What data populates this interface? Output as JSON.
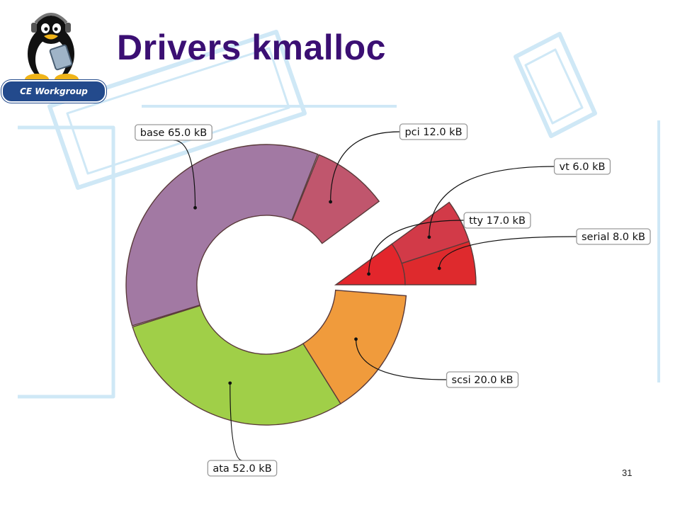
{
  "slide": {
    "title": "Drivers kmalloc",
    "logo_text": "CE Workgroup",
    "page_number": "31"
  },
  "chart_data": {
    "type": "sunburst",
    "title": "",
    "unit": "kB",
    "start_angle_deg": 0,
    "direction": "counterclockwise",
    "rings": [
      {
        "level": 1,
        "slices": [
          {
            "name": "pci",
            "value": 12.0,
            "label": "pci 12.0 kB",
            "color": "#c0566d",
            "start_deg": 36.5,
            "end_deg": 68.0
          },
          {
            "name": "base",
            "value": 65.0,
            "label": "base 65.0 kB",
            "color": "#a279a3",
            "start_deg": 68.5,
            "end_deg": 197.0
          },
          {
            "name": "ata",
            "value": 52.0,
            "label": "ata 52.0 kB",
            "color": "#a0cf48",
            "start_deg": 197.5,
            "end_deg": 302.0
          },
          {
            "name": "scsi",
            "value": 20.0,
            "label": "scsi 20.0 kB",
            "color": "#f09b3c",
            "start_deg": 302.0,
            "end_deg": 355.5
          }
        ]
      },
      {
        "level": 1,
        "exploded": true,
        "slices": [
          {
            "name": "tty",
            "value": 17.0,
            "label": "tty 17.0 kB",
            "color": "#e3262c",
            "start_deg": 0,
            "end_deg": 36
          }
        ]
      },
      {
        "level": 2,
        "exploded": true,
        "parent": "tty",
        "slices": [
          {
            "name": "serial",
            "value": 8.0,
            "label": "serial 8.0 kB",
            "color": "#de2a2d",
            "start_deg": 0,
            "end_deg": 18
          },
          {
            "name": "vt",
            "value": 6.0,
            "label": "vt 6.0 kB",
            "color": "#d23a48",
            "start_deg": 18,
            "end_deg": 36
          }
        ]
      }
    ],
    "legend": "none",
    "grid": false
  }
}
